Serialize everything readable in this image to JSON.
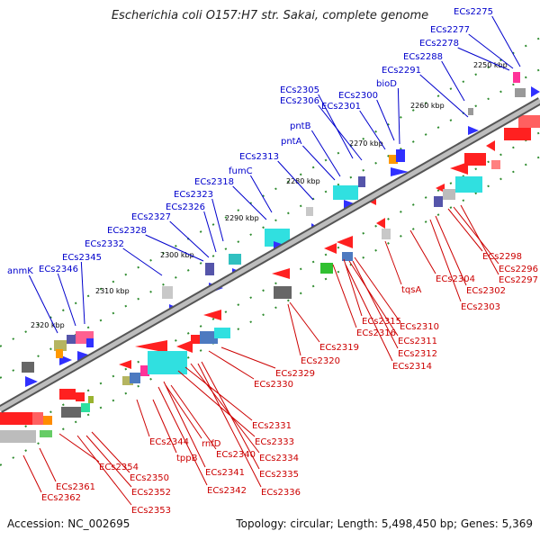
{
  "title": "Escherichia coli O157:H7 str. Sakai, complete genome",
  "accession": "Accession: NC_002695",
  "summary": "Topology: circular; Length: 5,498,450 bp; Genes: 5,369",
  "colors": {
    "forward_label": "#0000cc",
    "reverse_label": "#cc0000",
    "backbone": "#888888"
  },
  "ticks": [
    "2250 kbp",
    "2260 kbp",
    "2270 kbp",
    "2280 kbp",
    "2290 kbp",
    "2300 kbp",
    "2310 kbp",
    "2320 kbp"
  ],
  "forward_labels": [
    "ECs2275",
    "ECs2277",
    "ECs2278",
    "ECs2288",
    "ECs2291",
    "bioD",
    "ECs2300",
    "ECs2301",
    "ECs2305",
    "ECs2306",
    "pntB",
    "pntA",
    "ECs2313",
    "fumC",
    "ECs2318",
    "ECs2323",
    "ECs2326",
    "ECs2327",
    "ECs2328",
    "ECs2332",
    "ECs2345",
    "ECs2346",
    "anmK"
  ],
  "reverse_labels": [
    "ECs2298",
    "ECs2296",
    "ECs2297",
    "ECs2304",
    "ECs2302",
    "ECs2303",
    "tqsA",
    "ECs2310",
    "ECs2315",
    "ECs2316",
    "ECs2311",
    "ECs2312",
    "ECs2314",
    "ECs2319",
    "ECs2320",
    "ECs2329",
    "ECs2330",
    "ECs2331",
    "ECs2333",
    "ECs2334",
    "ECs2335",
    "ECs2336",
    "rnfD",
    "ECs2340",
    "ECs2341",
    "ECs2342",
    "ECs2344",
    "tppB",
    "ECs2350",
    "ECs2352",
    "ECs2353",
    "ECs2354",
    "ECs2361",
    "ECs2362"
  ]
}
